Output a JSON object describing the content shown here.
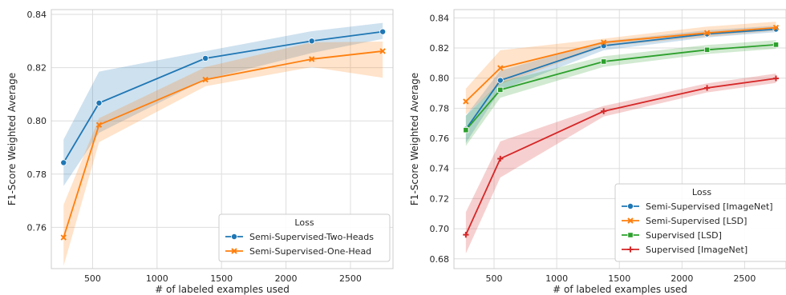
{
  "chart_data": [
    {
      "type": "line",
      "title": "",
      "xlabel": "# of labeled examples used",
      "ylabel": "F1-Score Weighted Average",
      "xlim": [
        180,
        2830
      ],
      "ylim": [
        0.7445,
        0.8418
      ],
      "xticks": [
        500,
        1000,
        1500,
        2000,
        2500
      ],
      "yticks": [
        0.76,
        0.78,
        0.8,
        0.82,
        0.84
      ],
      "ytick_labels": [
        "0.76",
        "0.78",
        "0.80",
        "0.82",
        "0.84"
      ],
      "grid": true,
      "legend": {
        "title": "Loss",
        "placement": "lower-right"
      },
      "x": [
        275,
        550,
        1375,
        2200,
        2750
      ],
      "series": [
        {
          "name": "Semi-Supervised-Two-Heads",
          "color": "#1f77b4",
          "marker": "circle",
          "values": [
            0.7843,
            0.8067,
            0.8235,
            0.83,
            0.8335
          ],
          "ci_low": [
            0.7755,
            0.7955,
            0.8155,
            0.8255,
            0.8308
          ],
          "ci_high": [
            0.793,
            0.8185,
            0.8262,
            0.8337,
            0.8368
          ]
        },
        {
          "name": "Semi-Supervised-One-Head",
          "color": "#ff7f0e",
          "marker": "x",
          "values": [
            0.7562,
            0.7985,
            0.8155,
            0.8232,
            0.8262
          ],
          "ci_low": [
            0.7455,
            0.792,
            0.813,
            0.8202,
            0.8162
          ],
          "ci_high": [
            0.7685,
            0.801,
            0.8202,
            0.8295,
            0.8298
          ]
        }
      ]
    },
    {
      "type": "line",
      "title": "",
      "xlabel": "# of labeled examples used",
      "ylabel": "F1-Score Weighted Average",
      "xlim": [
        180,
        2830
      ],
      "ylim": [
        0.6735,
        0.8455
      ],
      "xticks": [
        500,
        1000,
        1500,
        2000,
        2500
      ],
      "yticks": [
        0.68,
        0.7,
        0.72,
        0.74,
        0.76,
        0.78,
        0.8,
        0.82,
        0.84
      ],
      "ytick_labels": [
        "0.68",
        "0.70",
        "0.72",
        "0.74",
        "0.76",
        "0.78",
        "0.80",
        "0.82",
        "0.84"
      ],
      "grid": true,
      "legend": {
        "title": "Loss",
        "placement": "lower-right"
      },
      "x": [
        275,
        550,
        1375,
        2200,
        2750
      ],
      "series": [
        {
          "name": "Semi-Supervised [ImageNet]",
          "color": "#1f77b4",
          "marker": "circle",
          "values": [
            0.766,
            0.7985,
            0.8215,
            0.8293,
            0.8325
          ],
          "ci_low": [
            0.757,
            0.792,
            0.8185,
            0.827,
            0.8305
          ],
          "ci_high": [
            0.775,
            0.805,
            0.8245,
            0.8318,
            0.8348
          ]
        },
        {
          "name": "Semi-Supervised [LSD]",
          "color": "#ff7f0e",
          "marker": "x",
          "values": [
            0.7845,
            0.8067,
            0.8237,
            0.83,
            0.8335
          ],
          "ci_low": [
            0.776,
            0.796,
            0.821,
            0.8275,
            0.8315
          ],
          "ci_high": [
            0.793,
            0.8185,
            0.8262,
            0.8342,
            0.8375
          ]
        },
        {
          "name": "Supervised [LSD]",
          "color": "#2ca02c",
          "marker": "square",
          "values": [
            0.7655,
            0.7922,
            0.811,
            0.8188,
            0.8222
          ],
          "ci_low": [
            0.755,
            0.787,
            0.8075,
            0.816,
            0.8195
          ],
          "ci_high": [
            0.775,
            0.7975,
            0.8145,
            0.822,
            0.8252
          ]
        },
        {
          "name": "Supervised [ImageNet]",
          "color": "#d62728",
          "marker": "plus",
          "values": [
            0.696,
            0.7465,
            0.778,
            0.7935,
            0.7998
          ],
          "ci_low": [
            0.6835,
            0.734,
            0.7745,
            0.7905,
            0.7968
          ],
          "ci_high": [
            0.711,
            0.758,
            0.7815,
            0.7965,
            0.803
          ]
        }
      ]
    }
  ]
}
